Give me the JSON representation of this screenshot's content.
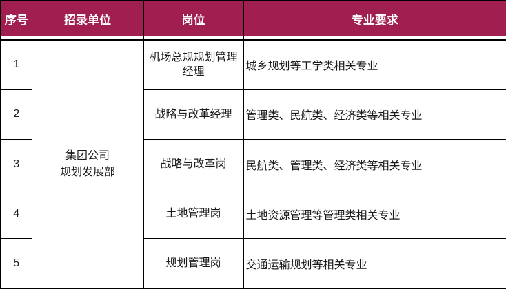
{
  "table": {
    "accent_color": "#A11E50",
    "border_color": "#000000",
    "header": {
      "no": "序号",
      "unit": "招录单位",
      "post": "岗位",
      "req": "专业要求"
    },
    "merged_unit": {
      "line1": "集团公司",
      "line2": "规划发展部"
    },
    "rows": [
      {
        "no": "1",
        "post": "机场总规规划管理经理",
        "req": "城乡规划等工学类相关专业"
      },
      {
        "no": "2",
        "post": "战略与改革经理",
        "req": "管理类、民航类、经济类等相关专业"
      },
      {
        "no": "3",
        "post": "战略与改革岗",
        "req": "民航类、管理类、经济类等相关专业"
      },
      {
        "no": "4",
        "post": "土地管理岗",
        "req": "土地资源管理等管理类相关专业"
      },
      {
        "no": "5",
        "post": "规划管理岗",
        "req": "交通运输规划等相关专业"
      }
    ]
  }
}
